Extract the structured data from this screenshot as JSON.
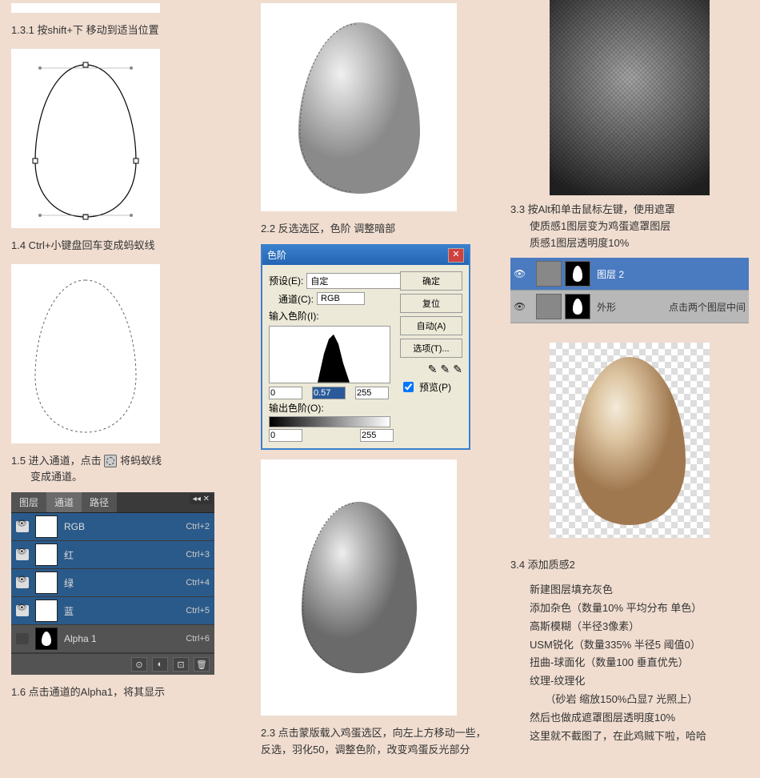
{
  "col1": {
    "partial_img": {
      "w": 186,
      "h": 12,
      "bg": "#ffffff"
    },
    "s131": "1.3.1 按shift+下 移动到适当位置",
    "egg_outline": {
      "stroke": "#000000",
      "fill": "#ffffff",
      "handles": true
    },
    "s14": "1.4 Ctrl+小键盘回车变成蚂蚁线",
    "egg_ants": {
      "stroke": "#666666",
      "dash": "3,3",
      "fill": "#ffffff"
    },
    "s15": "1.5 进入通道，点击",
    "s15b": "将蚂蚁线",
    "s15c": "变成通道。",
    "channels": {
      "tabs": [
        "图层",
        "通道",
        "路径"
      ],
      "active": 1,
      "rows": [
        {
          "name": "RGB",
          "key": "Ctrl+2",
          "sel": true,
          "eye": true,
          "fill": "#ffffff"
        },
        {
          "name": "红",
          "key": "Ctrl+3",
          "sel": true,
          "eye": true,
          "fill": "#ffffff"
        },
        {
          "name": "绿",
          "key": "Ctrl+4",
          "sel": true,
          "eye": true,
          "fill": "#ffffff"
        },
        {
          "name": "蓝",
          "key": "Ctrl+5",
          "sel": true,
          "eye": true,
          "fill": "#ffffff"
        },
        {
          "name": "Alpha 1",
          "key": "Ctrl+6",
          "sel": false,
          "eye": false,
          "alpha": true
        }
      ],
      "foot_icons": [
        "⊙",
        "◐",
        "⊡",
        "🗑"
      ]
    },
    "s16": "1.6 点击通道的Alpha1，将其显示"
  },
  "col2": {
    "egg_top": {
      "fill_light": "#dcdcdc",
      "fill_dark": "#838383",
      "highlight": "#f5f5f5",
      "sel_dash": "2,3"
    },
    "s22": "2.2 反选选区，色阶 调整暗部",
    "levels": {
      "title": "色阶",
      "preset_lbl": "预设(E):",
      "preset": "自定",
      "menu": "▤",
      "btn_ok": "确定",
      "btn_cancel": "复位",
      "btn_auto": "自动(A)",
      "btn_opt": "选项(T)...",
      "channel_lbl": "通道(C):",
      "channel": "RGB",
      "input_lbl": "输入色阶(I):",
      "in_lo": "0",
      "in_mid": "0.57",
      "in_hi": "255",
      "output_lbl": "输出色阶(O):",
      "out_lo": "0",
      "out_hi": "255",
      "preview": "预览(P)"
    },
    "egg_mid": {
      "fill_light": "#dcdcdc",
      "fill_dark": "#6a6a6a",
      "highlight": "#eeeeee"
    },
    "s23": "2.3 点击蒙版载入鸡蛋选区，向左上方移动一些，反选，羽化50，调整色阶，改变鸡蛋反光部分"
  },
  "col3": {
    "s33a": "3.3 按Alt和单击鼠标左键，使用遮罩",
    "s33b": "使质感1图层变为鸡蛋遮罩图层",
    "s33c": "质感1图层透明度10%",
    "layers": {
      "rows": [
        {
          "name": "图层 2",
          "sel": true,
          "thumbs": [
            "tex",
            "mask"
          ]
        },
        {
          "name": "外形",
          "sel": false,
          "thumbs": [
            "egg",
            "mask"
          ],
          "note": "点击两个图层中间"
        }
      ]
    },
    "egg_tan": {
      "light": "#e8d4b8",
      "dark": "#a88860",
      "highlight": "#f4ebda"
    },
    "s34": "3.4 添加质感2",
    "s34_lines": [
      "新建图层填充灰色",
      "添加杂色（数量10% 平均分布 单色）",
      "高斯模糊（半径3像素）",
      "USM锐化（数量335% 半径5 阈值0）",
      "扭曲-球面化（数量100 垂直优先）",
      "纹理-纹理化",
      "　　（砂岩 缩放150%凸显7 光照上）",
      "然后也做成遮罩图层透明度10%",
      "这里就不截图了，在此鸡贼下啦，哈哈"
    ]
  }
}
